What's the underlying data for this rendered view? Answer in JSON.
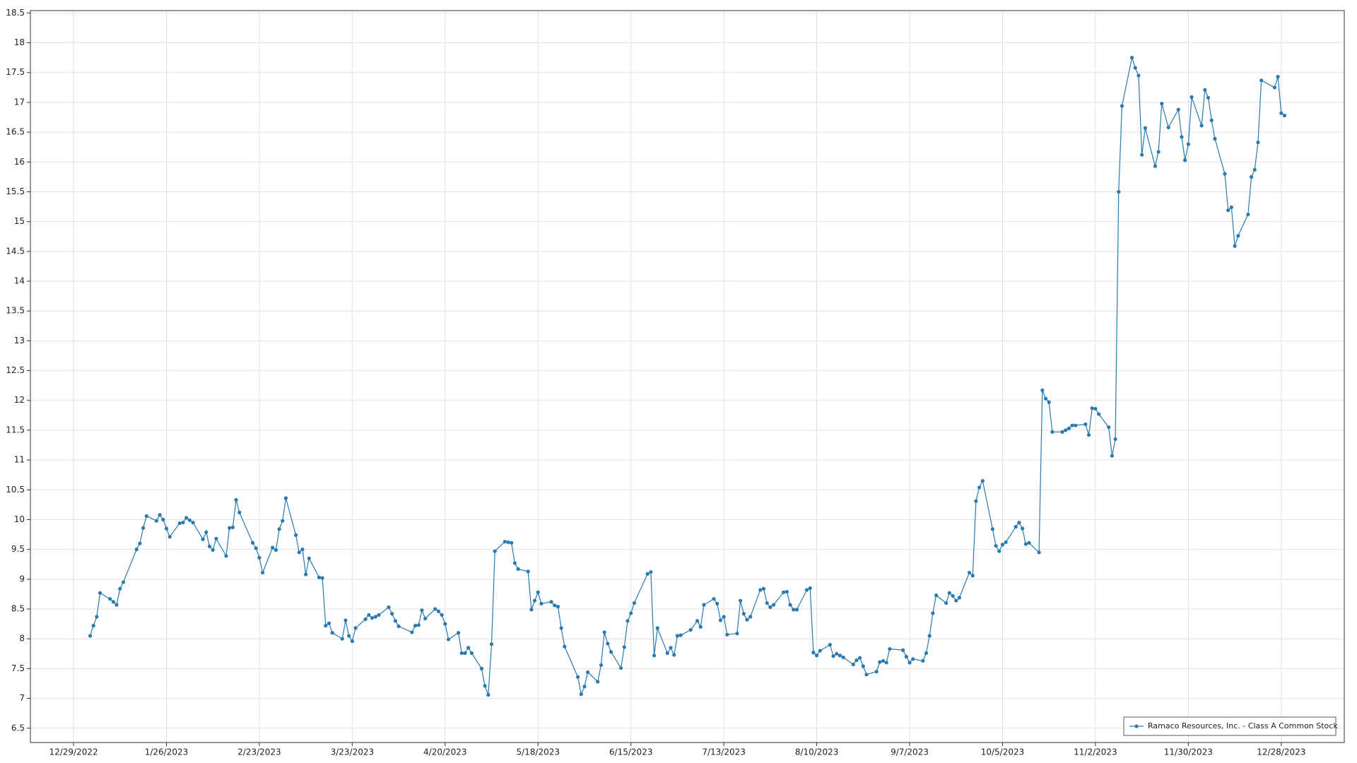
{
  "chart_data": {
    "type": "line",
    "series": [
      {
        "name": "Ramaco Resources, Inc. - Class A Common Stock",
        "color": "#2a7ab0",
        "values": [
          8.05,
          8.22,
          8.37,
          8.77,
          8.67,
          8.62,
          8.57,
          8.84,
          8.95,
          9.5,
          9.6,
          9.86,
          10.06,
          9.98,
          10.08,
          10.0,
          9.85,
          9.71,
          9.94,
          9.95,
          10.03,
          9.99,
          9.95,
          9.67,
          9.79,
          9.55,
          9.49,
          9.68,
          9.39,
          9.86,
          9.87,
          10.33,
          10.12,
          9.61,
          9.52,
          9.36,
          9.11,
          9.53,
          9.49,
          9.84,
          9.98,
          10.36,
          9.74,
          9.45,
          9.5,
          9.08,
          9.35,
          9.03,
          9.02,
          8.22,
          8.26,
          8.1,
          8.0,
          8.31,
          8.05,
          7.96,
          8.18,
          8.33,
          8.4,
          8.35,
          8.37,
          8.4,
          8.53,
          8.42,
          8.3,
          8.21,
          8.11,
          8.22,
          8.23,
          8.48,
          8.34,
          8.5,
          8.46,
          8.4,
          8.25,
          7.99,
          8.1,
          7.76,
          7.76,
          7.85,
          7.76,
          7.5,
          7.21,
          7.06,
          7.91,
          9.47,
          9.63,
          9.62,
          9.61,
          9.27,
          9.17,
          9.13,
          8.49,
          8.64,
          8.78,
          8.59,
          8.62,
          8.56,
          8.54,
          8.18,
          7.87,
          7.36,
          7.07,
          7.2,
          7.44,
          7.28,
          7.56,
          8.11,
          7.92,
          7.78,
          7.51,
          7.86,
          8.3,
          8.43,
          8.6,
          9.09,
          9.12,
          7.72,
          8.18,
          7.76,
          7.85,
          7.73,
          8.05,
          8.06,
          8.15,
          8.3,
          8.2,
          8.57,
          8.67,
          8.59,
          8.31,
          8.37,
          8.07,
          8.09,
          8.64,
          8.42,
          8.32,
          8.37,
          8.82,
          8.84,
          8.6,
          8.53,
          8.57,
          8.78,
          8.79,
          8.57,
          8.49,
          8.49,
          8.82,
          8.85,
          7.77,
          7.72,
          7.8,
          7.9,
          7.71,
          7.75,
          7.72,
          7.69,
          7.57,
          7.64,
          7.68,
          7.54,
          7.4,
          7.45,
          7.61,
          7.63,
          7.6,
          7.83,
          7.81,
          7.7,
          7.6,
          7.66,
          7.63,
          7.76,
          8.05,
          8.43,
          8.73,
          8.6,
          8.77,
          8.72,
          8.64,
          8.69,
          9.11,
          9.06,
          10.31,
          10.54,
          10.65,
          9.84,
          9.56,
          9.47,
          9.58,
          9.62,
          9.88,
          9.95,
          9.85,
          9.59,
          9.61,
          9.45,
          12.17,
          12.03,
          11.97,
          11.47,
          11.47,
          11.5,
          11.53,
          11.58,
          11.58,
          11.6,
          11.42,
          11.87,
          11.86,
          11.77,
          11.55,
          11.07,
          11.35,
          15.5,
          16.94,
          17.75,
          17.58,
          17.45,
          16.12,
          16.57,
          15.93,
          16.17,
          16.98,
          16.58,
          16.88,
          16.42,
          16.03,
          16.3,
          17.09,
          16.61,
          17.21,
          17.08,
          16.7,
          16.39,
          15.8,
          15.19,
          15.24,
          14.59,
          14.76,
          15.12,
          15.75,
          15.87,
          16.33,
          17.37,
          17.25,
          17.43,
          16.82,
          16.78
        ]
      }
    ],
    "x": [
      "2023-01-03",
      "2023-01-04",
      "2023-01-05",
      "2023-01-06",
      "2023-01-09",
      "2023-01-10",
      "2023-01-11",
      "2023-01-12",
      "2023-01-13",
      "2023-01-17",
      "2023-01-18",
      "2023-01-19",
      "2023-01-20",
      "2023-01-23",
      "2023-01-24",
      "2023-01-25",
      "2023-01-26",
      "2023-01-27",
      "2023-01-30",
      "2023-01-31",
      "2023-02-01",
      "2023-02-02",
      "2023-02-03",
      "2023-02-06",
      "2023-02-07",
      "2023-02-08",
      "2023-02-09",
      "2023-02-10",
      "2023-02-13",
      "2023-02-14",
      "2023-02-15",
      "2023-02-16",
      "2023-02-17",
      "2023-02-21",
      "2023-02-22",
      "2023-02-23",
      "2023-02-24",
      "2023-02-27",
      "2023-02-28",
      "2023-03-01",
      "2023-03-02",
      "2023-03-03",
      "2023-03-06",
      "2023-03-07",
      "2023-03-08",
      "2023-03-09",
      "2023-03-10",
      "2023-03-13",
      "2023-03-14",
      "2023-03-15",
      "2023-03-16",
      "2023-03-17",
      "2023-03-20",
      "2023-03-21",
      "2023-03-22",
      "2023-03-23",
      "2023-03-24",
      "2023-03-27",
      "2023-03-28",
      "2023-03-29",
      "2023-03-30",
      "2023-03-31",
      "2023-04-03",
      "2023-04-04",
      "2023-04-05",
      "2023-04-06",
      "2023-04-10",
      "2023-04-11",
      "2023-04-12",
      "2023-04-13",
      "2023-04-14",
      "2023-04-17",
      "2023-04-18",
      "2023-04-19",
      "2023-04-20",
      "2023-04-21",
      "2023-04-24",
      "2023-04-25",
      "2023-04-26",
      "2023-04-27",
      "2023-04-28",
      "2023-05-01",
      "2023-05-02",
      "2023-05-03",
      "2023-05-04",
      "2023-05-05",
      "2023-05-08",
      "2023-05-09",
      "2023-05-10",
      "2023-05-11",
      "2023-05-12",
      "2023-05-15",
      "2023-05-16",
      "2023-05-17",
      "2023-05-18",
      "2023-05-19",
      "2023-05-22",
      "2023-05-23",
      "2023-05-24",
      "2023-05-25",
      "2023-05-26",
      "2023-05-30",
      "2023-05-31",
      "2023-06-01",
      "2023-06-02",
      "2023-06-05",
      "2023-06-06",
      "2023-06-07",
      "2023-06-08",
      "2023-06-09",
      "2023-06-12",
      "2023-06-13",
      "2023-06-14",
      "2023-06-15",
      "2023-06-16",
      "2023-06-20",
      "2023-06-21",
      "2023-06-22",
      "2023-06-23",
      "2023-06-26",
      "2023-06-27",
      "2023-06-28",
      "2023-06-29",
      "2023-06-30",
      "2023-07-03",
      "2023-07-05",
      "2023-07-06",
      "2023-07-07",
      "2023-07-10",
      "2023-07-11",
      "2023-07-12",
      "2023-07-13",
      "2023-07-14",
      "2023-07-17",
      "2023-07-18",
      "2023-07-19",
      "2023-07-20",
      "2023-07-21",
      "2023-07-24",
      "2023-07-25",
      "2023-07-26",
      "2023-07-27",
      "2023-07-28",
      "2023-07-31",
      "2023-08-01",
      "2023-08-02",
      "2023-08-03",
      "2023-08-04",
      "2023-08-07",
      "2023-08-08",
      "2023-08-09",
      "2023-08-10",
      "2023-08-11",
      "2023-08-14",
      "2023-08-15",
      "2023-08-16",
      "2023-08-17",
      "2023-08-18",
      "2023-08-21",
      "2023-08-22",
      "2023-08-23",
      "2023-08-24",
      "2023-08-25",
      "2023-08-28",
      "2023-08-29",
      "2023-08-30",
      "2023-08-31",
      "2023-09-01",
      "2023-09-05",
      "2023-09-06",
      "2023-09-07",
      "2023-09-08",
      "2023-09-11",
      "2023-09-12",
      "2023-09-13",
      "2023-09-14",
      "2023-09-15",
      "2023-09-18",
      "2023-09-19",
      "2023-09-20",
      "2023-09-21",
      "2023-09-22",
      "2023-09-25",
      "2023-09-26",
      "2023-09-27",
      "2023-09-28",
      "2023-09-29",
      "2023-10-02",
      "2023-10-03",
      "2023-10-04",
      "2023-10-05",
      "2023-10-06",
      "2023-10-09",
      "2023-10-10",
      "2023-10-11",
      "2023-10-12",
      "2023-10-13",
      "2023-10-16",
      "2023-10-17",
      "2023-10-18",
      "2023-10-19",
      "2023-10-20",
      "2023-10-23",
      "2023-10-24",
      "2023-10-25",
      "2023-10-26",
      "2023-10-27",
      "2023-10-30",
      "2023-10-31",
      "2023-11-01",
      "2023-11-02",
      "2023-11-03",
      "2023-11-06",
      "2023-11-07",
      "2023-11-08",
      "2023-11-09",
      "2023-11-10",
      "2023-11-13",
      "2023-11-14",
      "2023-11-15",
      "2023-11-16",
      "2023-11-17",
      "2023-11-20",
      "2023-11-21",
      "2023-11-22",
      "2023-11-24",
      "2023-11-27",
      "2023-11-28",
      "2023-11-29",
      "2023-11-30",
      "2023-12-01",
      "2023-12-04",
      "2023-12-05",
      "2023-12-06",
      "2023-12-07",
      "2023-12-08",
      "2023-12-11",
      "2023-12-12",
      "2023-12-13",
      "2023-12-14",
      "2023-12-15",
      "2023-12-18",
      "2023-12-19",
      "2023-12-20",
      "2023-12-21",
      "2023-12-22",
      "2023-12-26",
      "2023-12-27",
      "2023-12-28",
      "2023-12-29"
    ],
    "xlim": [
      "2022-12-16",
      "2024-01-16"
    ],
    "xticks": [
      {
        "value": "2022-12-29",
        "label": "12/29/2022"
      },
      {
        "value": "2023-01-26",
        "label": "1/26/2023"
      },
      {
        "value": "2023-02-23",
        "label": "2/23/2023"
      },
      {
        "value": "2023-03-23",
        "label": "3/23/2023"
      },
      {
        "value": "2023-04-20",
        "label": "4/20/2023"
      },
      {
        "value": "2023-05-18",
        "label": "5/18/2023"
      },
      {
        "value": "2023-06-15",
        "label": "6/15/2023"
      },
      {
        "value": "2023-07-13",
        "label": "7/13/2023"
      },
      {
        "value": "2023-08-10",
        "label": "8/10/2023"
      },
      {
        "value": "2023-09-07",
        "label": "9/7/2023"
      },
      {
        "value": "2023-10-05",
        "label": "10/5/2023"
      },
      {
        "value": "2023-11-02",
        "label": "11/2/2023"
      },
      {
        "value": "2023-11-30",
        "label": "11/30/2023"
      },
      {
        "value": "2023-12-28",
        "label": "12/28/2023"
      }
    ],
    "ylim": [
      6.26,
      18.54
    ],
    "yticks": [
      6.5,
      7,
      7.5,
      8,
      8.5,
      9,
      9.5,
      10,
      10.5,
      11,
      11.5,
      12,
      12.5,
      13,
      13.5,
      14,
      14.5,
      15,
      15.5,
      16,
      16.5,
      17,
      17.5,
      18,
      18.5
    ],
    "grid": true,
    "legend": "lower right"
  }
}
